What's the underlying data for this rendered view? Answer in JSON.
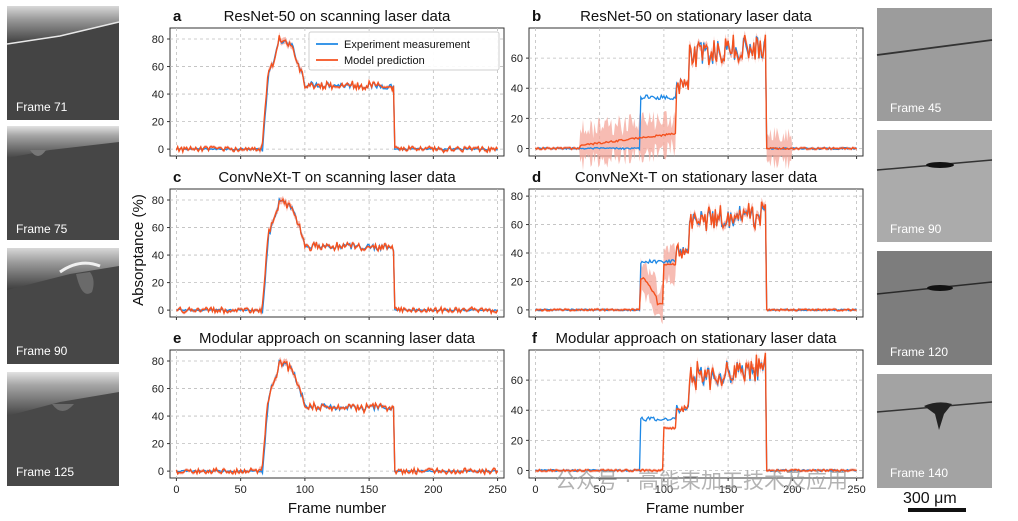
{
  "figure": {
    "ylabel": "Absorptance (%)",
    "xlabel": "Frame number",
    "legend": [
      "Experiment measurement",
      "Model prediction"
    ],
    "colors": {
      "experiment": "#1e88e5",
      "prediction": "#f4511e",
      "uncertainty": "#f4a59a"
    },
    "left_frames": [
      "Frame 71",
      "Frame 75",
      "Frame 90",
      "Frame 125"
    ],
    "right_frames": [
      "Frame 45",
      "Frame 90",
      "Frame 120",
      "Frame 140"
    ],
    "scale_bar": "300 μm",
    "watermark": "公众号 · 高能束加工技术及应用"
  },
  "chart_data": [
    {
      "type": "line",
      "letter": "a",
      "title": "ResNet-50 on scanning laser data",
      "scenario": "scanning",
      "model": "resnet",
      "xlim": [
        -5,
        255
      ],
      "ylim": [
        -5,
        88
      ],
      "xticks": [
        0,
        50,
        100,
        150,
        200,
        250
      ],
      "yticks": [
        0,
        20,
        40,
        60,
        80
      ],
      "show_xticks": false
    },
    {
      "type": "line",
      "letter": "b",
      "title": "ResNet-50 on stationary laser data",
      "scenario": "stationary",
      "model": "resnet",
      "xlim": [
        -5,
        255
      ],
      "ylim": [
        -5,
        80
      ],
      "xticks": [
        0,
        50,
        100,
        150,
        200,
        250
      ],
      "yticks": [
        0,
        20,
        40,
        60
      ],
      "show_xticks": false
    },
    {
      "type": "line",
      "letter": "c",
      "title": "ConvNeXt-T on scanning laser data",
      "scenario": "scanning",
      "model": "convnext",
      "xlim": [
        -5,
        255
      ],
      "ylim": [
        -5,
        88
      ],
      "xticks": [
        0,
        50,
        100,
        150,
        200,
        250
      ],
      "yticks": [
        0,
        20,
        40,
        60,
        80
      ],
      "show_xticks": false
    },
    {
      "type": "line",
      "letter": "d",
      "title": "ConvNeXt-T on stationary laser data",
      "scenario": "stationary",
      "model": "convnext",
      "xlim": [
        -5,
        255
      ],
      "ylim": [
        -5,
        85
      ],
      "xticks": [
        0,
        50,
        100,
        150,
        200,
        250
      ],
      "yticks": [
        0,
        20,
        40,
        60,
        80
      ],
      "show_xticks": false
    },
    {
      "type": "line",
      "letter": "e",
      "title": "Modular approach on scanning laser data",
      "scenario": "scanning",
      "model": "modular",
      "xlim": [
        -5,
        255
      ],
      "ylim": [
        -5,
        88
      ],
      "xticks": [
        0,
        50,
        100,
        150,
        200,
        250
      ],
      "yticks": [
        0,
        20,
        40,
        60,
        80
      ],
      "show_xticks": true
    },
    {
      "type": "line",
      "letter": "f",
      "title": "Modular approach on stationary laser data",
      "scenario": "stationary",
      "model": "modular",
      "xlim": [
        -5,
        255
      ],
      "ylim": [
        -5,
        80
      ],
      "xticks": [
        0,
        50,
        100,
        150,
        200,
        250
      ],
      "yticks": [
        0,
        20,
        40,
        60
      ],
      "show_xticks": true
    }
  ]
}
